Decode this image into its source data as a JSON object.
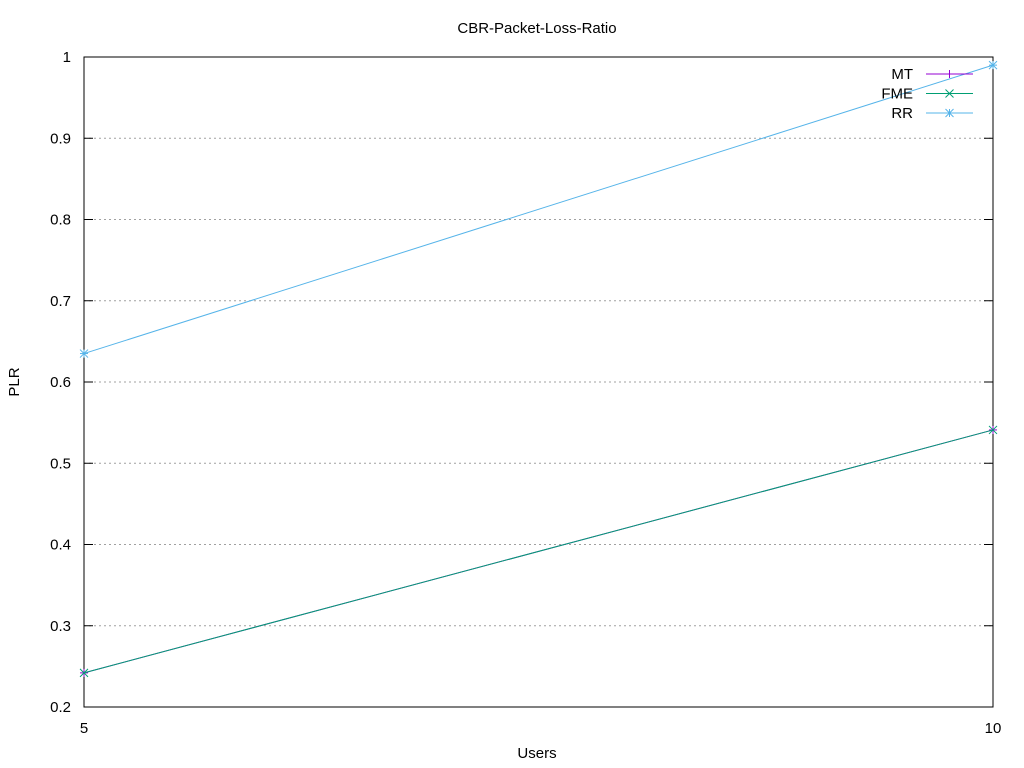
{
  "chart_data": {
    "type": "line",
    "title": "CBR-Packet-Loss-Ratio",
    "xlabel": "Users",
    "ylabel": "PLR",
    "x": [
      5,
      10
    ],
    "xlim": [
      5,
      10
    ],
    "ylim": [
      0.2,
      1
    ],
    "xticks": [
      "5",
      "10"
    ],
    "yticks": [
      "0.2",
      "0.3",
      "0.4",
      "0.5",
      "0.6",
      "0.7",
      "0.8",
      "0.9",
      "1"
    ],
    "grid": "horizontal dotted",
    "legend_position": "top-right",
    "series": [
      {
        "name": "MT",
        "values": [
          0.242,
          0.541
        ],
        "color": "#9400d3",
        "marker": "plus"
      },
      {
        "name": "FME",
        "values": [
          0.242,
          0.541
        ],
        "color": "#009e73",
        "marker": "cross"
      },
      {
        "name": "RR",
        "values": [
          0.635,
          0.99
        ],
        "color": "#56b4e9",
        "marker": "star"
      }
    ]
  }
}
